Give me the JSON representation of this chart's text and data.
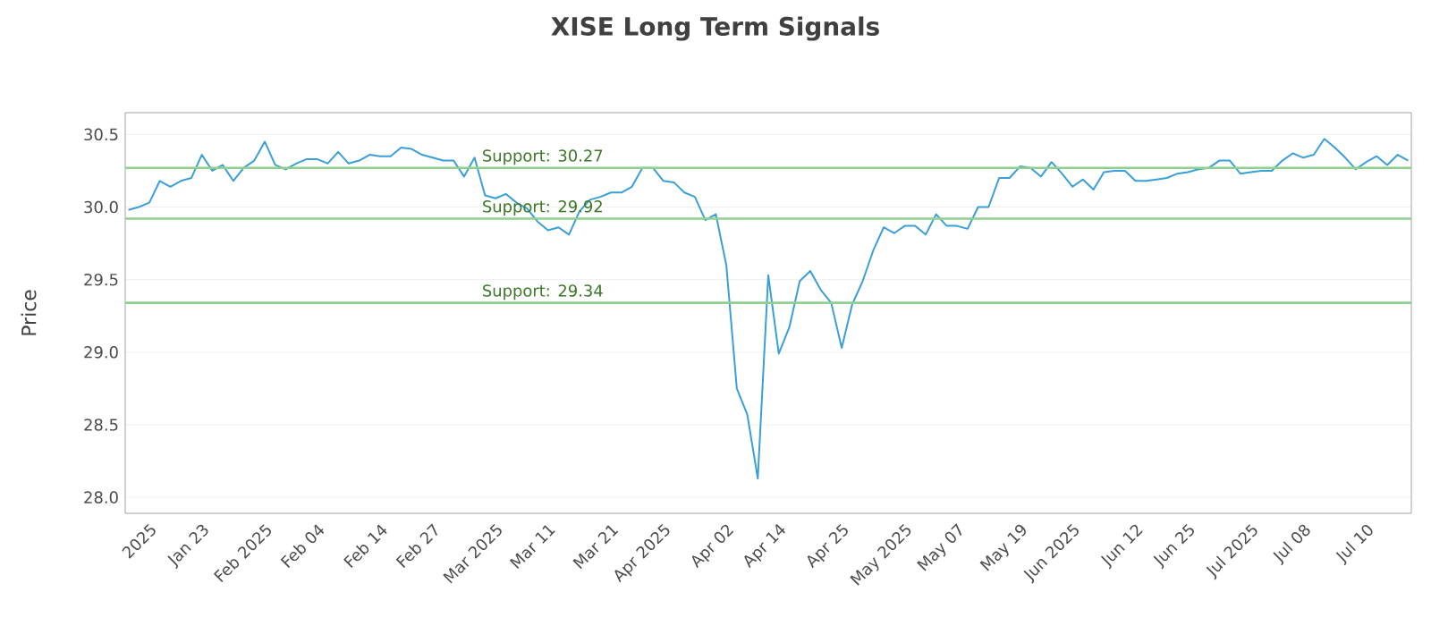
{
  "chart_data": {
    "type": "line",
    "title": "XISE Long Term Signals",
    "ylabel": "Price",
    "categories": [
      null,
      null,
      "2025",
      null,
      null,
      null,
      null,
      "Jan 23",
      null,
      null,
      null,
      null,
      null,
      "Feb 2025",
      null,
      null,
      null,
      null,
      "Feb 04",
      null,
      null,
      null,
      null,
      null,
      "Feb 14",
      null,
      null,
      null,
      null,
      "Feb 27",
      null,
      null,
      null,
      null,
      null,
      "Mar 2025",
      null,
      null,
      null,
      null,
      "Mar 11",
      null,
      null,
      null,
      null,
      null,
      "Mar 21",
      null,
      null,
      null,
      null,
      "Apr 2025",
      null,
      null,
      null,
      null,
      null,
      "Apr 02",
      null,
      null,
      null,
      null,
      "Apr 14",
      null,
      null,
      null,
      null,
      null,
      "Apr 25",
      null,
      null,
      null,
      null,
      null,
      "May 2025",
      null,
      null,
      null,
      null,
      "May 07",
      null,
      null,
      null,
      null,
      null,
      "May 19",
      null,
      null,
      null,
      null,
      "Jun 2025",
      null,
      null,
      null,
      null,
      null,
      "Jun 12",
      null,
      null,
      null,
      null,
      "Jun 25",
      null,
      null,
      null,
      null,
      null,
      "Jul 2025",
      null,
      null,
      null,
      null,
      "Jul 08",
      null,
      null,
      null,
      null,
      null,
      "Jul 10",
      null,
      null,
      null,
      null
    ],
    "series": [
      {
        "color": "#3a9fd8",
        "values": [
          29.98,
          30.0,
          30.03,
          30.18,
          30.14,
          30.18,
          30.2,
          30.36,
          30.25,
          30.29,
          30.18,
          30.27,
          30.32,
          30.45,
          30.29,
          30.26,
          30.3,
          30.33,
          30.33,
          30.3,
          30.38,
          30.3,
          30.32,
          30.36,
          30.35,
          30.35,
          30.41,
          30.4,
          30.36,
          30.34,
          30.32,
          30.32,
          30.21,
          30.34,
          30.08,
          30.06,
          30.09,
          30.03,
          29.99,
          29.9,
          29.84,
          29.86,
          29.81,
          29.97,
          30.05,
          30.07,
          30.1,
          30.1,
          30.14,
          30.27,
          30.27,
          30.18,
          30.17,
          30.1,
          30.07,
          29.91,
          29.95,
          29.6,
          28.75,
          28.57,
          28.13,
          29.53,
          28.99,
          29.17,
          29.49,
          29.56,
          29.43,
          29.34,
          29.03,
          29.33,
          29.49,
          29.7,
          29.86,
          29.82,
          29.87,
          29.87,
          29.81,
          29.95,
          29.87,
          29.87,
          29.85,
          30.0,
          30.0,
          30.2,
          30.2,
          30.28,
          30.27,
          30.21,
          30.31,
          30.23,
          30.14,
          30.19,
          30.12,
          30.24,
          30.25,
          30.25,
          30.18,
          30.18,
          30.19,
          30.2,
          30.23,
          30.24,
          30.26,
          30.27,
          30.32,
          30.32,
          30.23,
          30.24,
          30.25,
          30.25,
          30.32,
          30.37,
          30.34,
          30.36,
          30.47,
          30.41,
          30.34,
          30.26,
          30.31,
          30.35,
          30.29,
          30.36,
          30.32
        ]
      }
    ],
    "ylim": [
      27.89,
      30.65
    ],
    "yticks": [
      {
        "value": 28.0,
        "label": "28.0"
      },
      {
        "value": 28.5,
        "label": "28.5"
      },
      {
        "value": 29.0,
        "label": "29.0"
      },
      {
        "value": 29.5,
        "label": "29.5"
      },
      {
        "value": 30.0,
        "label": "30.0"
      },
      {
        "value": 30.5,
        "label": "30.5"
      }
    ],
    "ref_lines": [
      {
        "axis": "y",
        "value": 30.27,
        "label": "Support: 30.27",
        "color": "#8fcf8f"
      },
      {
        "axis": "y",
        "value": 29.92,
        "label": "Support: 29.92",
        "color": "#8fcf8f"
      },
      {
        "axis": "y",
        "value": 29.34,
        "label": "Support: 29.34",
        "color": "#8fcf8f"
      }
    ],
    "grid": "y",
    "legend": false,
    "marker": "none",
    "line_style": "solid"
  }
}
